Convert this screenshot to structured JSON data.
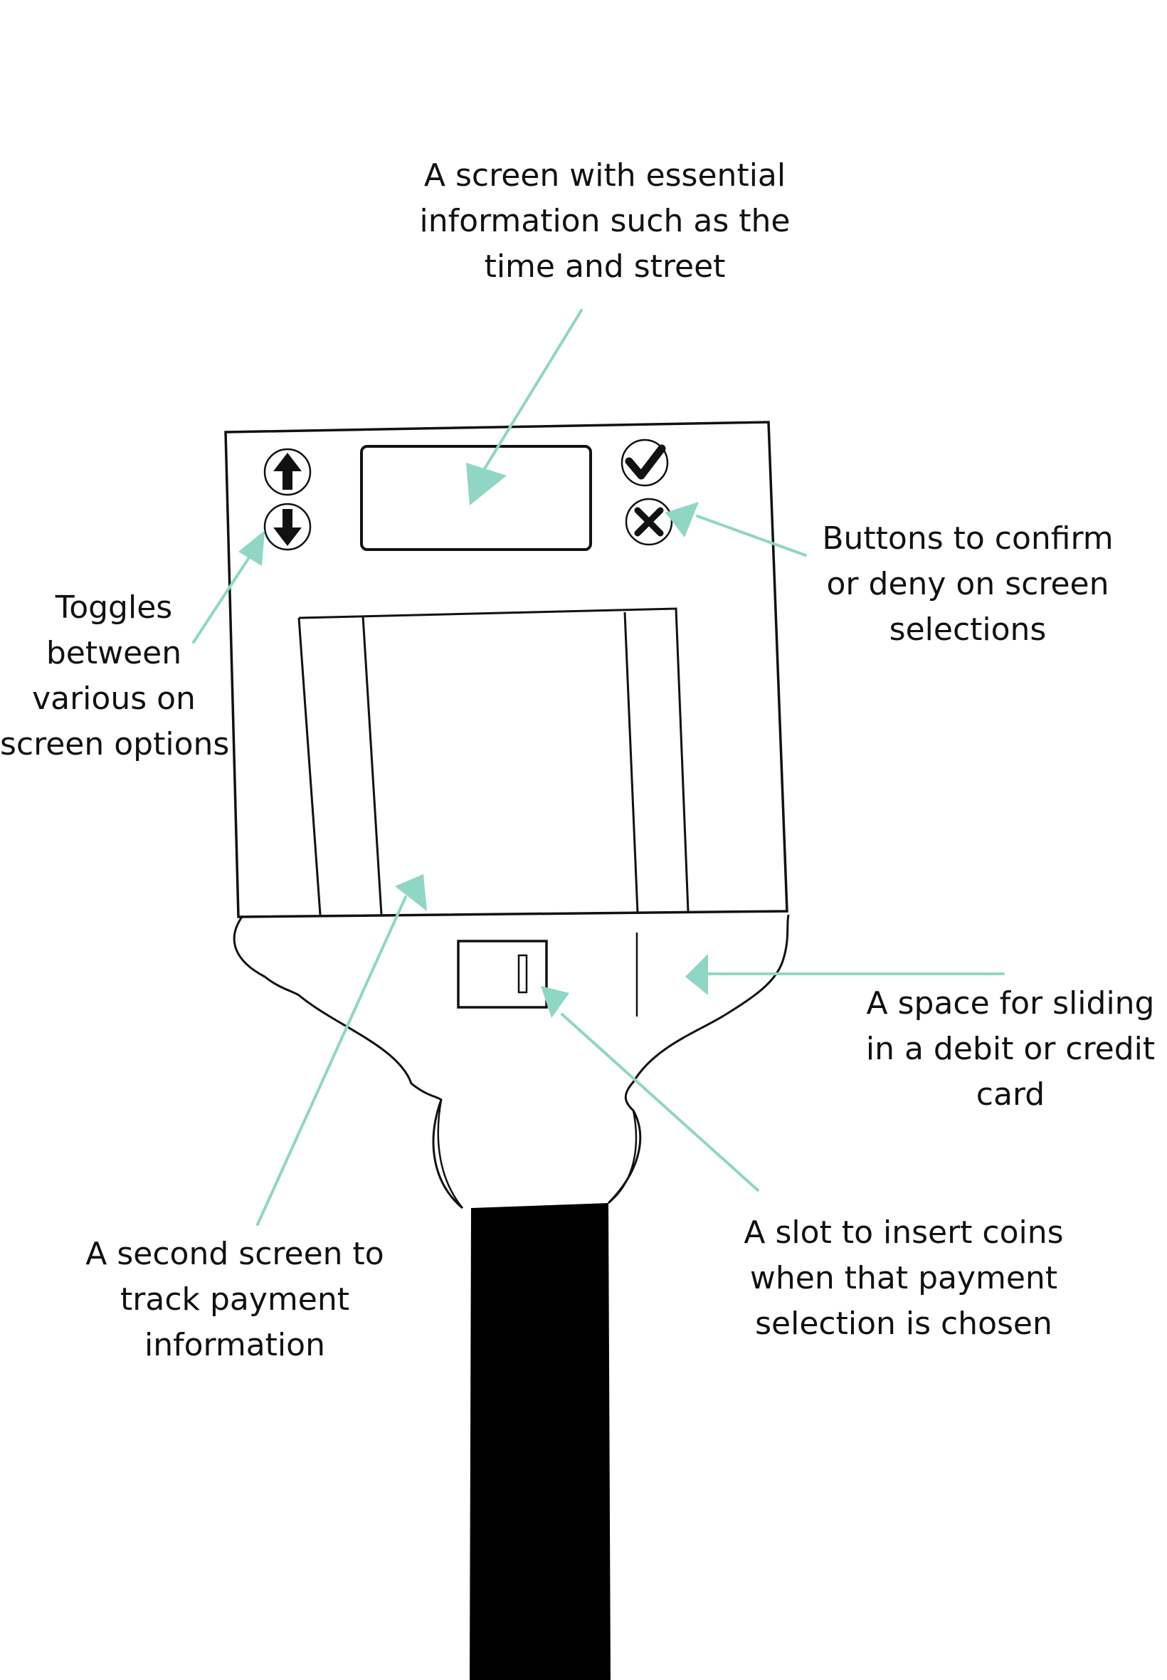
{
  "annotations": {
    "main_screen": [
      "A screen with essential",
      "information such as the",
      "time and street"
    ],
    "toggles": [
      "Toggles",
      "between",
      "various on",
      "screen options"
    ],
    "confirm_deny": [
      "Buttons to confirm",
      "or deny on screen",
      "selections"
    ],
    "card_slot": [
      "A space for sliding",
      "in a debit or credit",
      "card"
    ],
    "second_screen": [
      "A second screen to",
      "track payment",
      "information"
    ],
    "coin_slot": [
      "A slot to insert coins",
      "when that payment",
      "selection is chosen"
    ]
  },
  "colors": {
    "arrow": "#8fd6c4",
    "stroke": "#111111",
    "pole": "#000000",
    "background": "#ffffff"
  },
  "icons": [
    "arrow-up-icon",
    "arrow-down-icon",
    "checkmark-icon",
    "x-mark-icon"
  ]
}
